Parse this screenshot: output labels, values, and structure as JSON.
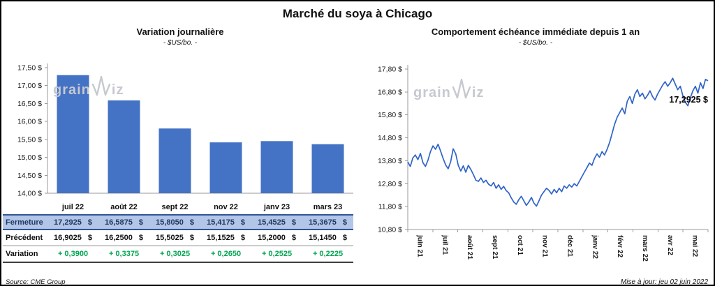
{
  "title": "Marché du soya à Chicago",
  "watermark": {
    "prefix": "grain",
    "suffix": "iz",
    "full": "grainwiz"
  },
  "left_panel": {
    "title": "Variation journalière",
    "subtitle": "- $US/bo. -",
    "source": "Source: CME Group"
  },
  "right_panel": {
    "title": "Comportement échéance immédiate depuis 1 an",
    "subtitle": "- $US/bo. -",
    "annotation": "17,2925 $",
    "updated": "Mise à jour: jeu 02 juin 2022"
  },
  "colors": {
    "bar": "#4472C4",
    "line": "#2E64C8",
    "fermeture_bg": "#B4C6E7",
    "fermeture_text": "#1F3864",
    "variation_green": "#00A651",
    "watermark": "#C6C9D0"
  },
  "table": {
    "categories": [
      "juil 22",
      "août 22",
      "sept 22",
      "nov 22",
      "janv 23",
      "mars 23"
    ],
    "rows": [
      {
        "label": "Fermeture",
        "style": "fermeture",
        "suffix": "$",
        "values": [
          "17,2925",
          "16,5875",
          "15,8050",
          "15,4175",
          "15,4525",
          "15,3675"
        ]
      },
      {
        "label": "Précédent",
        "style": "precedent",
        "suffix": "$",
        "values": [
          "16,9025",
          "16,2500",
          "15,5025",
          "15,1525",
          "15,2000",
          "15,1450"
        ]
      },
      {
        "label": "Variation",
        "style": "variation",
        "suffix": "",
        "values": [
          "+ 0,3900",
          "+ 0,3375",
          "+ 0,3025",
          "+ 0,2650",
          "+ 0,2525",
          "+ 0,2225"
        ]
      }
    ]
  },
  "chart_data": [
    {
      "type": "bar",
      "title": "Variation journalière",
      "subtitle": "- $US/bo. -",
      "categories": [
        "juil 22",
        "août 22",
        "sept 22",
        "nov 22",
        "janv 23",
        "mars 23"
      ],
      "values": [
        17.2925,
        16.5875,
        15.805,
        15.4175,
        15.4525,
        15.3675
      ],
      "ylabel": "$US/bo.",
      "ylim": [
        14.0,
        17.5
      ],
      "ytick_step": 0.5,
      "grid": false,
      "bar_color": "#4472C4"
    },
    {
      "type": "line",
      "title": "Comportement échéance immédiate depuis 1 an",
      "subtitle": "- $US/bo. -",
      "x_labels": [
        "juin 21",
        "juil 21",
        "août 21",
        "sept 21",
        "oct 21",
        "nov 21",
        "déc 21",
        "janv 22",
        "févr 22",
        "mars 22",
        "avr 22",
        "mai 22"
      ],
      "values": [
        13.75,
        13.55,
        13.92,
        14.05,
        13.85,
        14.12,
        13.72,
        13.55,
        13.82,
        14.2,
        14.45,
        14.3,
        14.52,
        14.22,
        13.9,
        13.62,
        13.45,
        13.75,
        14.32,
        14.1,
        13.6,
        13.35,
        13.58,
        13.3,
        13.6,
        13.42,
        13.2,
        12.95,
        12.9,
        13.05,
        12.85,
        12.95,
        12.78,
        12.7,
        12.85,
        12.6,
        12.75,
        12.55,
        12.68,
        12.5,
        12.4,
        12.18,
        12.0,
        11.9,
        12.1,
        12.25,
        12.05,
        11.85,
        12.0,
        12.2,
        11.95,
        11.82,
        12.05,
        12.3,
        12.45,
        12.6,
        12.5,
        12.35,
        12.55,
        12.4,
        12.6,
        12.45,
        12.7,
        12.6,
        12.75,
        12.65,
        12.8,
        12.7,
        12.9,
        13.1,
        13.3,
        13.5,
        13.7,
        13.6,
        13.9,
        14.1,
        13.95,
        14.2,
        14.05,
        14.3,
        14.6,
        15.0,
        15.4,
        15.7,
        15.9,
        16.1,
        15.85,
        16.4,
        16.6,
        16.3,
        16.7,
        16.9,
        16.6,
        16.75,
        16.5,
        16.65,
        16.85,
        16.6,
        16.45,
        16.7,
        16.9,
        17.1,
        17.25,
        17.05,
        17.2,
        17.4,
        17.15,
        16.9,
        17.05,
        16.65,
        16.35,
        16.2,
        16.55,
        16.85,
        17.05,
        16.75,
        17.2,
        16.95,
        17.35,
        17.2925
      ],
      "ylabel": "$US/bo.",
      "ylim": [
        10.8,
        17.8
      ],
      "ytick_step": 1.0,
      "grid": false,
      "line_color": "#2E64C8",
      "last_value_label": "17,2925 $"
    }
  ]
}
